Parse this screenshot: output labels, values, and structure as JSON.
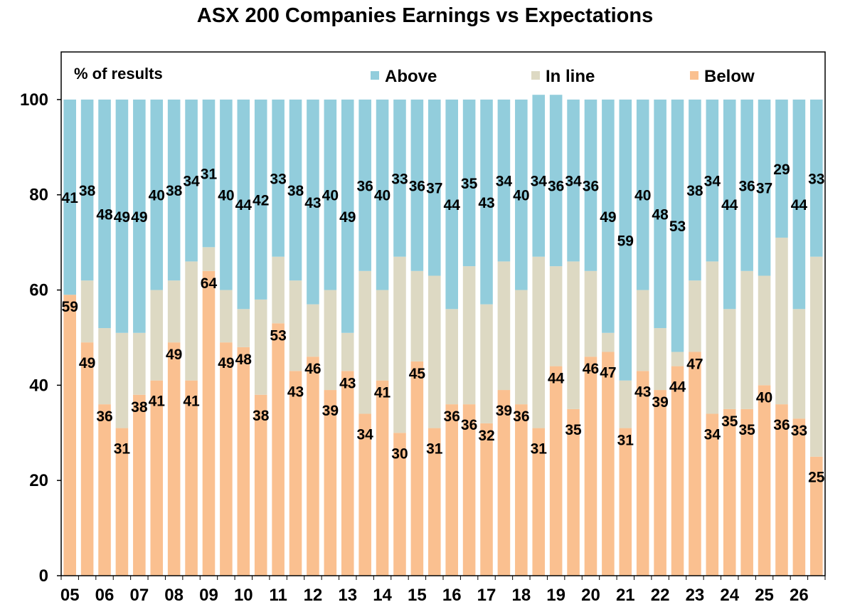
{
  "chart_data": {
    "type": "bar",
    "stacked": true,
    "title": "ASX 200 Companies Earnings vs Expectations",
    "ylabel": "% of results",
    "ylim": [
      0,
      110
    ],
    "yticks": [
      0,
      20,
      40,
      60,
      80,
      100
    ],
    "xtick_labels": [
      "05",
      "06",
      "07",
      "08",
      "09",
      "10",
      "11",
      "12",
      "13",
      "14",
      "15",
      "16",
      "17",
      "18",
      "19",
      "20",
      "21",
      "22",
      "23",
      "24",
      "25",
      "26"
    ],
    "legend": {
      "position": "top",
      "entries": [
        "Above",
        "In line",
        "Below"
      ]
    },
    "grid": false,
    "colors": {
      "Above": "#92cddc",
      "In line": "#ddd9c3",
      "Below": "#fac090"
    },
    "series": [
      {
        "name": "Below",
        "values": [
          59,
          49,
          36,
          31,
          38,
          41,
          49,
          41,
          64,
          49,
          48,
          38,
          53,
          43,
          46,
          39,
          43,
          34,
          41,
          30,
          45,
          31,
          36,
          36,
          32,
          39,
          36,
          31,
          44,
          35,
          46,
          47,
          31,
          43,
          39,
          44,
          47,
          34,
          35,
          35,
          40,
          36,
          33,
          25
        ]
      },
      {
        "name": "In line",
        "values": [
          0,
          13,
          16,
          20,
          13,
          19,
          13,
          25,
          5,
          11,
          8,
          20,
          14,
          19,
          11,
          21,
          8,
          30,
          19,
          37,
          19,
          32,
          20,
          29,
          25,
          27,
          24,
          36,
          21,
          31,
          18,
          4,
          10,
          17,
          13,
          3,
          15,
          32,
          21,
          29,
          23,
          35,
          23,
          42
        ]
      },
      {
        "name": "Above",
        "values": [
          41,
          38,
          48,
          49,
          49,
          40,
          38,
          34,
          31,
          40,
          44,
          42,
          33,
          38,
          43,
          40,
          49,
          36,
          40,
          33,
          36,
          37,
          44,
          35,
          43,
          34,
          40,
          34,
          36,
          34,
          36,
          49,
          59,
          40,
          48,
          53,
          38,
          34,
          44,
          36,
          37,
          29,
          44,
          33
        ]
      }
    ]
  }
}
